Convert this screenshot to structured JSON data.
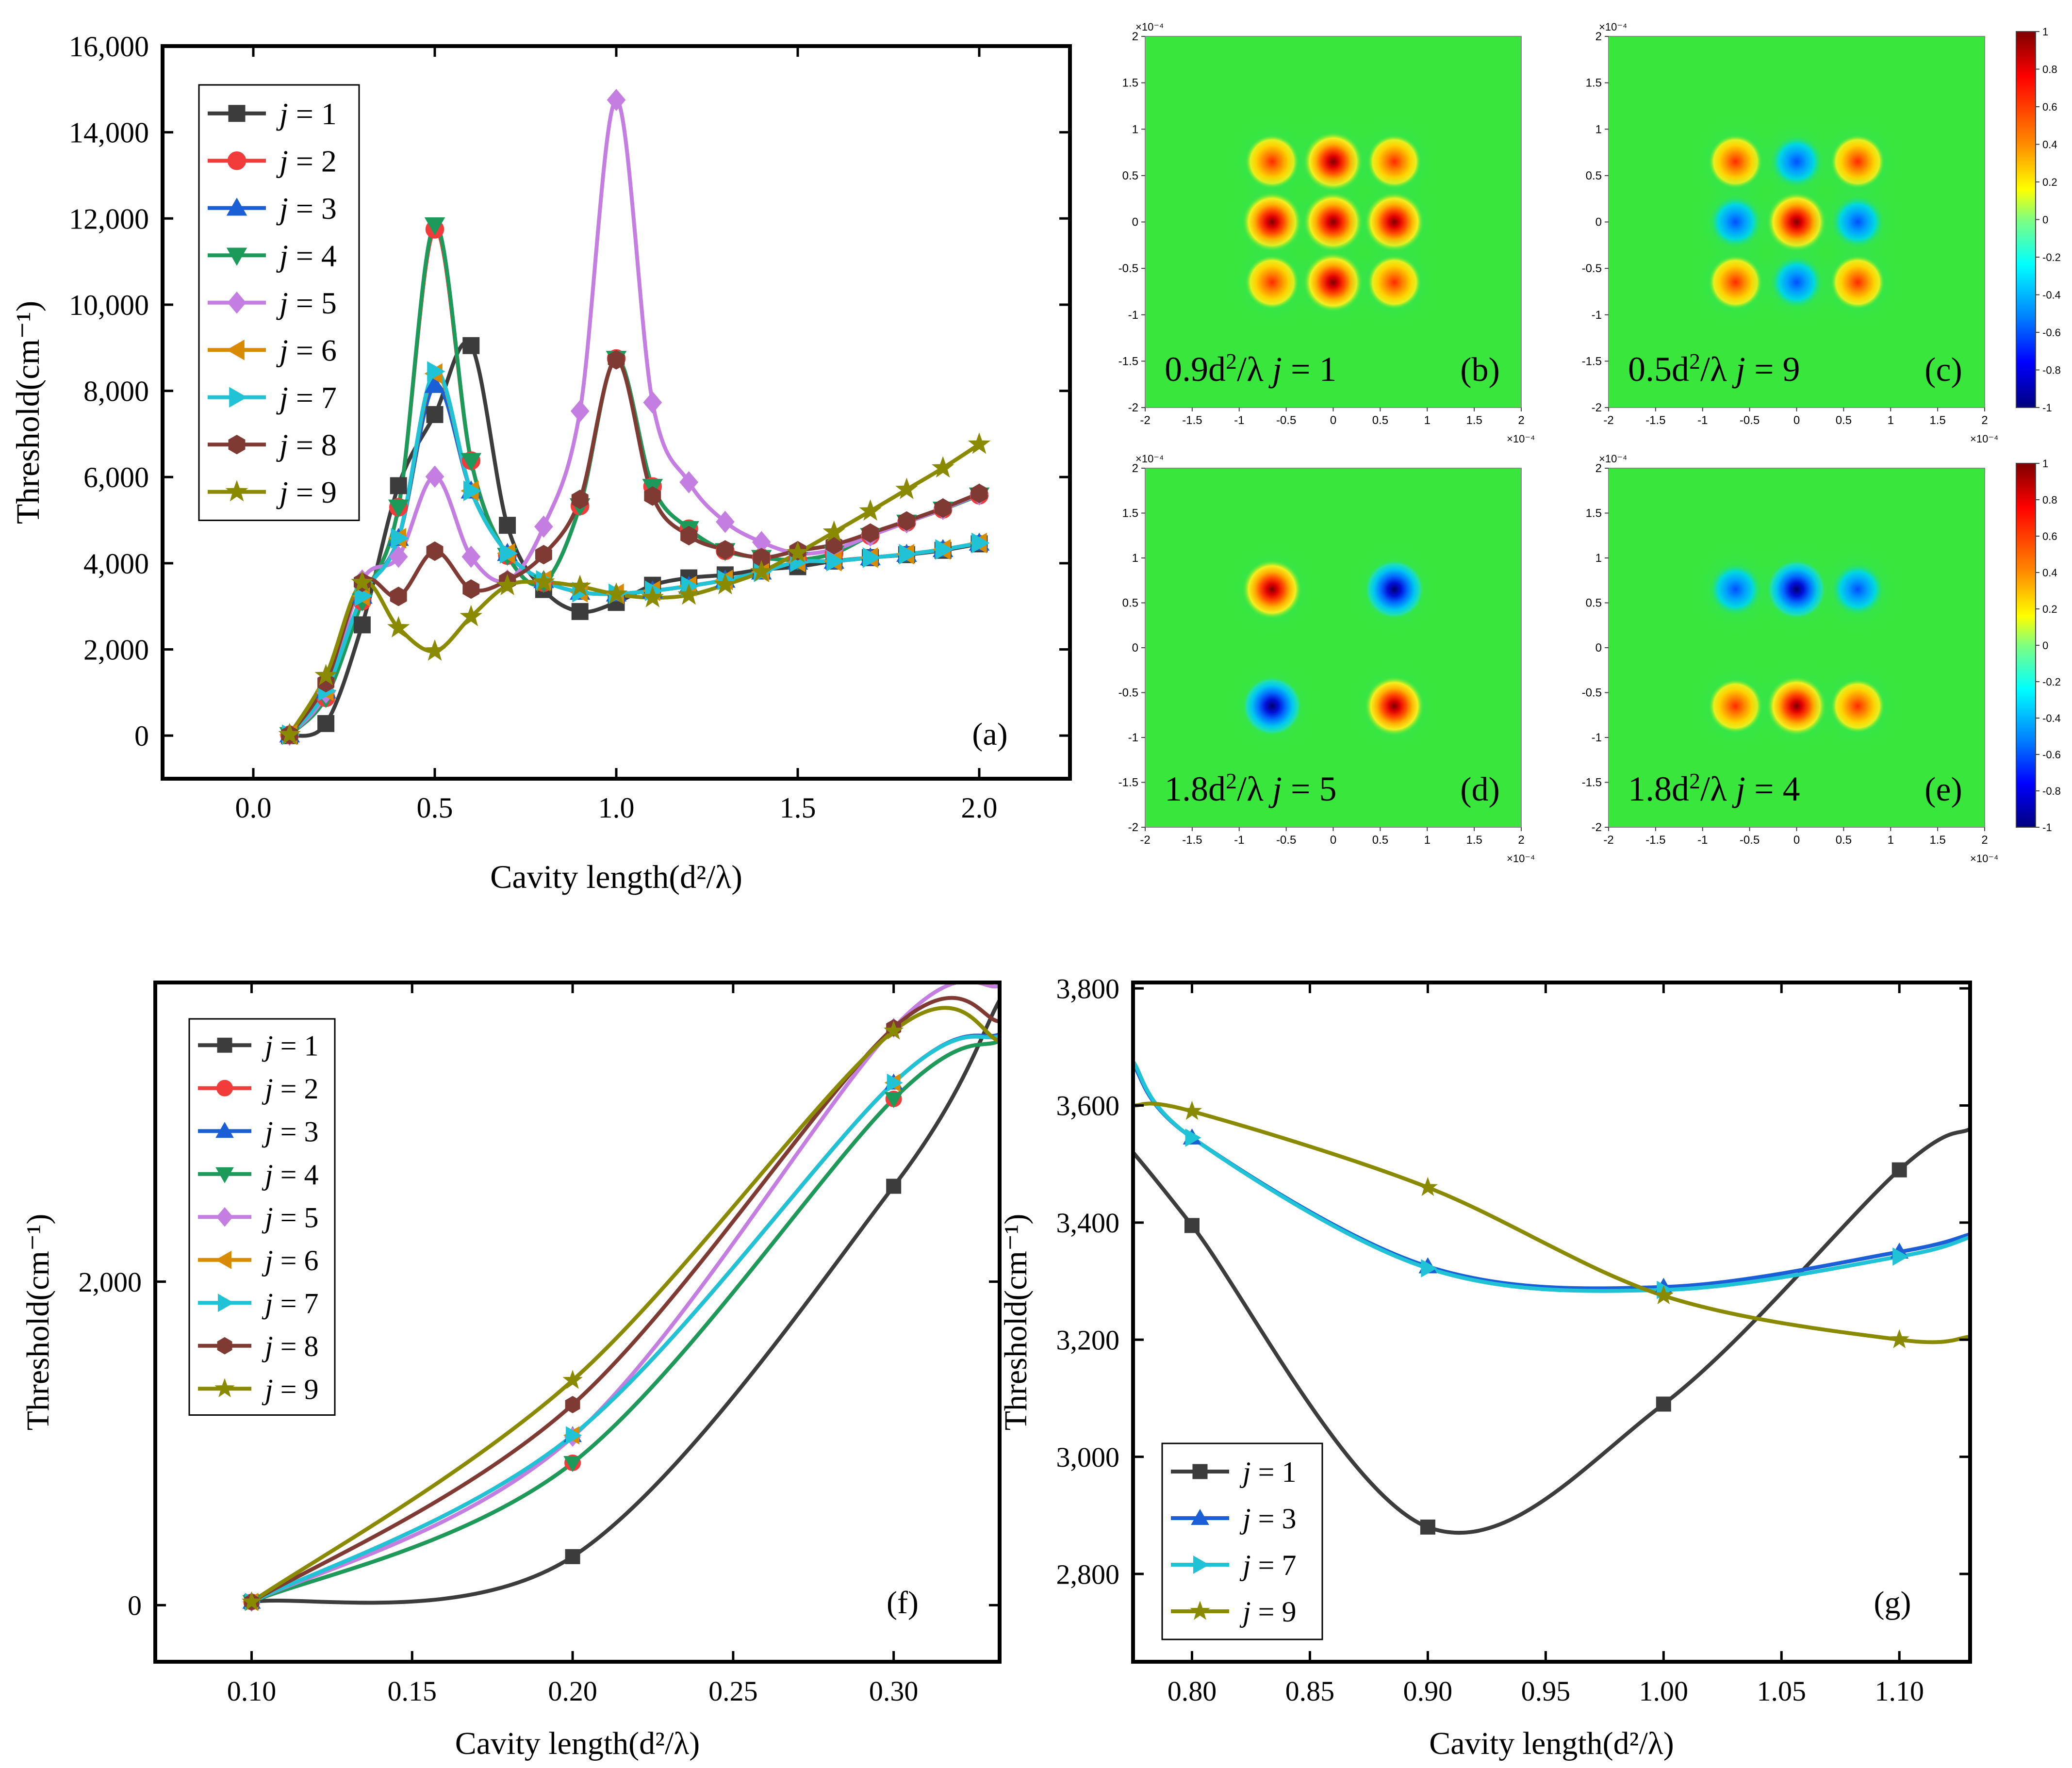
{
  "colors": {
    "j1": "#3c3c3c",
    "j2": "#f23b3b",
    "j3": "#1a5fd6",
    "j4": "#1b9a5a",
    "j5": "#c47de0",
    "j6": "#d98b00",
    "j7": "#20c2d6",
    "j8": "#7f3b33",
    "j9": "#8a8a00",
    "field_bg": "#38e63c"
  },
  "chart_data": [
    {
      "id": "a",
      "type": "line",
      "panel_label": "(a)",
      "xlabel": "Cavity length(d²/λ)",
      "ylabel": "Threshold(cm⁻¹)",
      "xlim": [
        -0.25,
        2.25
      ],
      "ylim": [
        -1000,
        16000
      ],
      "xticks": [
        0.0,
        0.5,
        1.0,
        1.5,
        2.0
      ],
      "xtick_labels": [
        "0.0",
        "0.5",
        "1.0",
        "1.5",
        "2.0"
      ],
      "yticks": [
        0,
        2000,
        4000,
        6000,
        8000,
        10000,
        12000,
        14000,
        16000
      ],
      "ytick_labels": [
        "0",
        "2,000",
        "4,000",
        "6,000",
        "8,000",
        "10,000",
        "12,000",
        "14,000",
        "16,000"
      ],
      "x": [
        0.1,
        0.2,
        0.3,
        0.4,
        0.5,
        0.6,
        0.7,
        0.8,
        0.9,
        1.0,
        1.1,
        1.2,
        1.3,
        1.4,
        1.5,
        1.6,
        1.7,
        1.8,
        1.9,
        2.0
      ],
      "series": [
        {
          "name": "j = 1",
          "key": "j1",
          "marker": "square",
          "values": [
            0,
            280,
            2570,
            5800,
            7450,
            9050,
            4880,
            3390,
            2880,
            3090,
            3490,
            3660,
            3730,
            3850,
            3920,
            4050,
            4130,
            4200,
            4300,
            4450
          ]
        },
        {
          "name": "j = 2",
          "key": "j2",
          "marker": "circle",
          "values": [
            20,
            880,
            3120,
            5300,
            11750,
            6380,
            4180,
            3550,
            5330,
            8750,
            5780,
            4800,
            4290,
            4130,
            4080,
            4230,
            4640,
            4950,
            5250,
            5580
          ]
        },
        {
          "name": "j = 3",
          "key": "j3",
          "marker": "triangle-up",
          "values": [
            20,
            1040,
            3240,
            4580,
            8130,
            5680,
            4230,
            3600,
            3330,
            3290,
            3360,
            3470,
            3610,
            3800,
            4030,
            4050,
            4130,
            4210,
            4320,
            4470
          ]
        },
        {
          "name": "j = 4",
          "key": "j4",
          "marker": "triangle-down",
          "values": [
            20,
            880,
            3120,
            5300,
            11850,
            6380,
            4180,
            3550,
            5330,
            8750,
            5780,
            4800,
            4290,
            4130,
            4080,
            4230,
            4640,
            4950,
            5250,
            5580
          ]
        },
        {
          "name": "j = 5",
          "key": "j5",
          "marker": "diamond",
          "values": [
            20,
            1000,
            3600,
            4150,
            6010,
            4150,
            3600,
            4850,
            7530,
            14750,
            7730,
            5880,
            4960,
            4490,
            4230,
            4320,
            4640,
            4950,
            5260,
            5600
          ]
        },
        {
          "name": "j = 6",
          "key": "j6",
          "marker": "triangle-left",
          "values": [
            20,
            1040,
            3240,
            4580,
            8400,
            5680,
            4230,
            3600,
            3330,
            3290,
            3360,
            3470,
            3610,
            3800,
            4030,
            4050,
            4130,
            4210,
            4320,
            4470
          ]
        },
        {
          "name": "j = 7",
          "key": "j7",
          "marker": "triangle-right",
          "values": [
            20,
            1040,
            3240,
            4580,
            8450,
            5680,
            4230,
            3600,
            3330,
            3290,
            3360,
            3470,
            3610,
            3800,
            4030,
            4050,
            4130,
            4210,
            4320,
            4470
          ]
        },
        {
          "name": "j = 8",
          "key": "j8",
          "marker": "hexagon",
          "values": [
            20,
            1230,
            3560,
            3230,
            4280,
            3400,
            3600,
            4200,
            5480,
            8720,
            5560,
            4640,
            4310,
            4130,
            4290,
            4430,
            4700,
            4980,
            5280,
            5620
          ]
        },
        {
          "name": "j = 9",
          "key": "j9",
          "marker": "star",
          "values": [
            20,
            1390,
            3550,
            2500,
            1960,
            2760,
            3480,
            3560,
            3460,
            3280,
            3200,
            3260,
            3500,
            3800,
            4240,
            4720,
            5210,
            5710,
            6210,
            6760
          ]
        }
      ]
    },
    {
      "id": "f",
      "type": "line",
      "panel_label": "(f)",
      "xlabel": "Cavity length(d²/λ)",
      "ylabel": "Threshold(cm⁻¹)",
      "xlim": [
        0.07,
        0.333
      ],
      "ylim": [
        -350,
        3850
      ],
      "xticks": [
        0.1,
        0.15,
        0.2,
        0.25,
        0.3
      ],
      "xtick_labels": [
        "0.10",
        "0.15",
        "0.20",
        "0.25",
        "0.30"
      ],
      "yticks": [
        0,
        2000
      ],
      "ytick_labels": [
        "0",
        "2,000"
      ],
      "x": [
        0.1,
        0.2,
        0.3,
        0.333
      ],
      "series": [
        {
          "name": "j = 1",
          "key": "j1",
          "marker": "square",
          "values": [
            20,
            300,
            2590,
            3740
          ]
        },
        {
          "name": "j = 2",
          "key": "j2",
          "marker": "circle",
          "values": [
            20,
            880,
            3130,
            3490
          ]
        },
        {
          "name": "j = 3",
          "key": "j3",
          "marker": "triangle-up",
          "values": [
            20,
            1050,
            3230,
            3530
          ]
        },
        {
          "name": "j = 4",
          "key": "j4",
          "marker": "triangle-down",
          "values": [
            20,
            880,
            3130,
            3490
          ]
        },
        {
          "name": "j = 5",
          "key": "j5",
          "marker": "diamond",
          "values": [
            20,
            1040,
            3570,
            3830
          ]
        },
        {
          "name": "j = 6",
          "key": "j6",
          "marker": "triangle-left",
          "values": [
            20,
            1050,
            3230,
            3520
          ]
        },
        {
          "name": "j = 7",
          "key": "j7",
          "marker": "triangle-right",
          "values": [
            20,
            1050,
            3230,
            3520
          ]
        },
        {
          "name": "j = 8",
          "key": "j8",
          "marker": "hexagon",
          "values": [
            20,
            1240,
            3570,
            3610
          ]
        },
        {
          "name": "j = 9",
          "key": "j9",
          "marker": "star",
          "values": [
            20,
            1390,
            3550,
            3490
          ]
        }
      ]
    },
    {
      "id": "g",
      "type": "line",
      "panel_label": "(g)",
      "xlabel": "Cavity length(d²/λ)",
      "ylabel": "Threshold(cm⁻¹)",
      "xlim": [
        0.775,
        1.13
      ],
      "ylim": [
        2650,
        3810
      ],
      "xticks": [
        0.8,
        0.85,
        0.9,
        0.95,
        1.0,
        1.05,
        1.1
      ],
      "xtick_labels": [
        "0.80",
        "0.85",
        "0.90",
        "0.95",
        "1.00",
        "1.05",
        "1.10"
      ],
      "yticks": [
        2800,
        3000,
        3200,
        3400,
        3600,
        3800
      ],
      "ytick_labels": [
        "2,800",
        "3,000",
        "3,200",
        "3,400",
        "3,600",
        "3,800"
      ],
      "x": [
        0.775,
        0.8,
        0.9,
        1.0,
        1.1,
        1.13
      ],
      "series": [
        {
          "name": "j = 1",
          "key": "j1",
          "marker": "square",
          "values": [
            3520,
            3395,
            2880,
            3090,
            3490,
            3560
          ]
        },
        {
          "name": "j = 3",
          "key": "j3",
          "marker": "triangle-up",
          "values": [
            3670,
            3545,
            3325,
            3290,
            3350,
            3380
          ]
        },
        {
          "name": "j = 7",
          "key": "j7",
          "marker": "triangle-right",
          "values": [
            3675,
            3545,
            3322,
            3285,
            3342,
            3375
          ]
        },
        {
          "name": "j = 9",
          "key": "j9",
          "marker": "star",
          "values": [
            3600,
            3590,
            3460,
            3275,
            3200,
            3205
          ]
        }
      ]
    }
  ],
  "field_panels": [
    {
      "id": "b",
      "caption": "0.9d²/λ j = 1",
      "caption_prefix": "0.9d",
      "caption_mid": "/λ ",
      "caption_j": "j",
      "caption_val": " = 1",
      "panel_label": "(b)",
      "axis_exp": "×10⁻⁴",
      "spots": [
        [
          -0.65,
          0.65,
          0.75
        ],
        [
          0,
          0.65,
          1
        ],
        [
          0.65,
          0.65,
          0.75
        ],
        [
          -0.65,
          0,
          1
        ],
        [
          0,
          0,
          1
        ],
        [
          0.65,
          0,
          1
        ],
        [
          -0.65,
          -0.65,
          0.75
        ],
        [
          0,
          -0.65,
          1
        ],
        [
          0.65,
          -0.65,
          0.75
        ]
      ]
    },
    {
      "id": "c",
      "caption": "0.5d²/λ j = 9",
      "caption_prefix": "0.5d",
      "caption_mid": "/λ ",
      "caption_j": "j",
      "caption_val": " = 9",
      "panel_label": "(c)",
      "axis_exp": "×10⁻⁴",
      "spots": [
        [
          -0.65,
          0.65,
          0.7
        ],
        [
          0,
          0.65,
          -0.8
        ],
        [
          0.65,
          0.65,
          0.7
        ],
        [
          -0.65,
          0,
          -0.8
        ],
        [
          0,
          0,
          1
        ],
        [
          0.65,
          0,
          -0.8
        ],
        [
          -0.65,
          -0.65,
          0.7
        ],
        [
          0,
          -0.65,
          -0.8
        ],
        [
          0.65,
          -0.65,
          0.7
        ]
      ]
    },
    {
      "id": "d",
      "caption": "1.8d²/λ j = 5",
      "caption_prefix": "1.8d",
      "caption_mid": "/λ ",
      "caption_j": "j",
      "caption_val": " = 5",
      "panel_label": "(d)",
      "axis_exp": "×10⁻⁴",
      "spots": [
        [
          -0.65,
          0.65,
          1
        ],
        [
          0.65,
          0.65,
          -1
        ],
        [
          -0.65,
          -0.65,
          -1
        ],
        [
          0.65,
          -0.65,
          1
        ]
      ]
    },
    {
      "id": "e",
      "caption": "1.8d²/λ j = 4",
      "caption_prefix": "1.8d",
      "caption_mid": "/λ ",
      "caption_j": "j",
      "caption_val": " = 4",
      "panel_label": "(e)",
      "axis_exp": "×10⁻⁴",
      "spots": [
        [
          -0.65,
          0.65,
          -0.7
        ],
        [
          0,
          0.65,
          -1
        ],
        [
          0.65,
          0.65,
          -0.7
        ],
        [
          -0.65,
          -0.65,
          0.75
        ],
        [
          0,
          -0.65,
          1
        ],
        [
          0.65,
          -0.65,
          0.75
        ]
      ]
    }
  ],
  "field_axis": {
    "x_ticks": [
      "-2",
      "-1.5",
      "-1",
      "-0.5",
      "0",
      "0.5",
      "1",
      "1.5",
      "2"
    ],
    "y_ticks": [
      "2",
      "1.5",
      "1",
      "0.5",
      "0",
      "-0.5",
      "-1",
      "-1.5",
      "-2"
    ]
  },
  "colorbar": {
    "ticks": [
      "1",
      "0.8",
      "0.6",
      "0.4",
      "0.2",
      "0",
      "-0.2",
      "-0.4",
      "-0.6",
      "-0.8",
      "-1"
    ]
  }
}
